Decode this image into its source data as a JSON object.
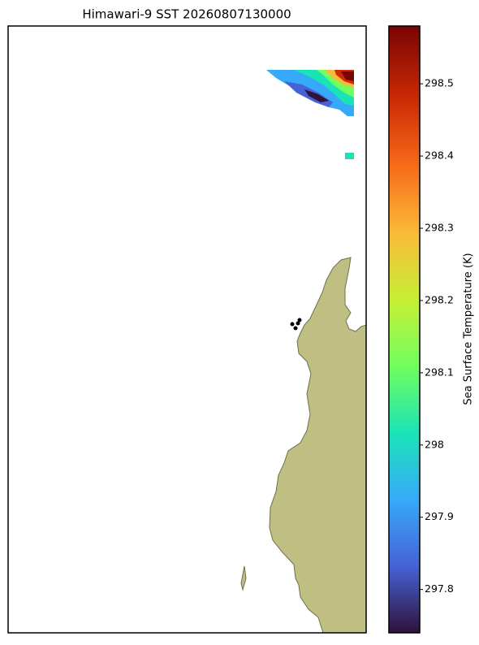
{
  "chart_data": {
    "type": "map",
    "title": "Himawari-9 SST 20260807130000",
    "colorbar_label": "Sea Surface Temperature (K)",
    "colormap": "turbo",
    "clim": [
      297.74,
      298.58
    ],
    "cticks": [
      297.8,
      297.9,
      298.0,
      298.1,
      298.2,
      298.3,
      298.4,
      298.5
    ]
  }
}
